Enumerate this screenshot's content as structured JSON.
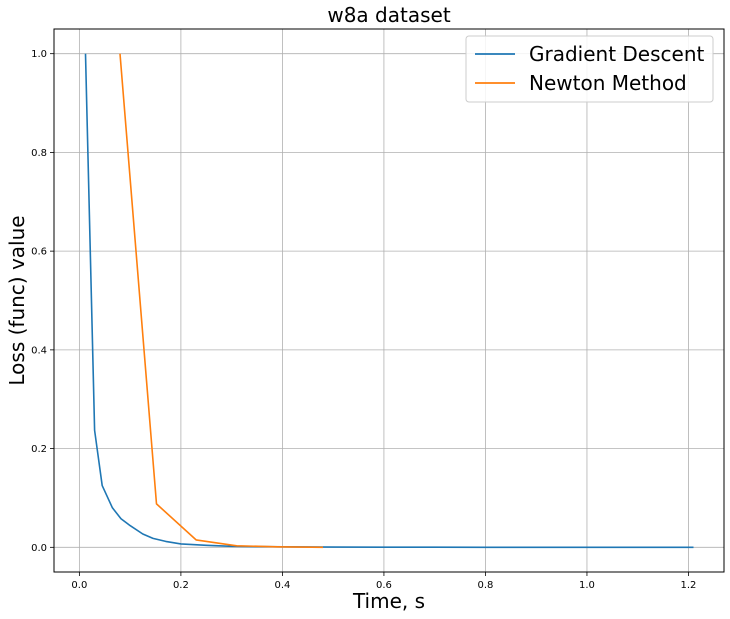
{
  "chart_data": {
    "type": "line",
    "title": "w8a dataset",
    "xlabel": "Time, s",
    "ylabel": "Loss (func) value",
    "xlim": [
      -0.05,
      1.27
    ],
    "ylim": [
      -0.05,
      1.05
    ],
    "xticks": [
      "0.0",
      "0.2",
      "0.4",
      "0.6",
      "0.8",
      "1.0",
      "1.2"
    ],
    "yticks": [
      "0.0",
      "0.2",
      "0.4",
      "0.6",
      "0.8",
      "1.0"
    ],
    "grid": true,
    "legend_position": "top-right",
    "series": [
      {
        "name": "Gradient Descent",
        "color": "#1f77b4",
        "x": [
          0.012,
          0.03,
          0.045,
          0.065,
          0.082,
          0.1,
          0.125,
          0.145,
          0.17,
          0.2,
          0.25,
          0.3,
          0.4,
          0.5,
          0.6,
          0.7,
          0.8,
          0.9,
          1.0,
          1.1,
          1.21
        ],
        "y": [
          1.0,
          0.237,
          0.125,
          0.08,
          0.058,
          0.044,
          0.027,
          0.018,
          0.012,
          0.007,
          0.004,
          0.002,
          0.001,
          0.0005,
          0.0003,
          0.0002,
          0.0001,
          0.0001,
          0.0,
          0.0,
          0.0
        ]
      },
      {
        "name": "Newton Method",
        "color": "#ff7f0e",
        "x": [
          0.08,
          0.152,
          0.23,
          0.31,
          0.39,
          0.48
        ],
        "y": [
          1.0,
          0.088,
          0.015,
          0.003,
          0.001,
          0.0
        ]
      }
    ]
  }
}
